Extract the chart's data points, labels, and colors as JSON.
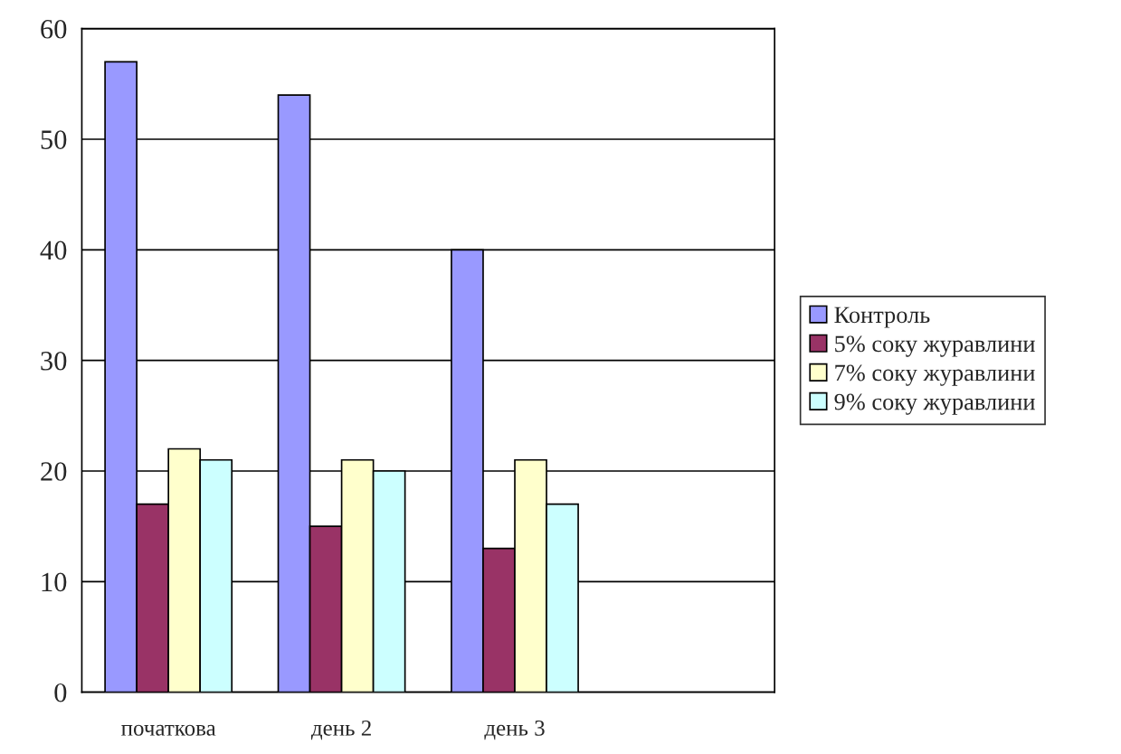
{
  "chart_data": {
    "type": "bar",
    "categories": [
      "початкова",
      "день 2",
      "день 3",
      null
    ],
    "series": [
      {
        "name": "Контроль",
        "color": "#9999ff",
        "values": [
          57,
          54,
          40,
          null
        ]
      },
      {
        "name": "5% соку журавлини",
        "color": "#993366",
        "values": [
          17,
          15,
          13,
          null
        ]
      },
      {
        "name": "7% соку журавлини",
        "color": "#ffffcc",
        "values": [
          22,
          21,
          21,
          null
        ]
      },
      {
        "name": "9% соку журавлини",
        "color": "#ccffff",
        "values": [
          21,
          20,
          17,
          null
        ]
      }
    ],
    "ylim": [
      0,
      60
    ],
    "yticks": [
      0,
      10,
      20,
      30,
      40,
      50,
      60
    ],
    "grid": "y",
    "legend": "right"
  }
}
